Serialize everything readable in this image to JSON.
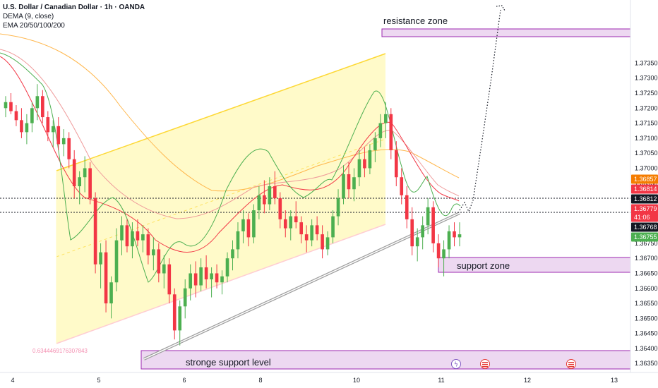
{
  "legend": {
    "title": "U.S. Dollar / Canadian Dollar · 1h · OANDA",
    "ind1": "DEMA (9, close)",
    "ind2": "EMA 20/50/100/200"
  },
  "chart_data": {
    "type": "candlestick",
    "ylim": [
      1.3632,
      1.3756
    ],
    "y_ticks": [
      "1.37350",
      "1.37300",
      "1.37250",
      "1.37200",
      "1.37150",
      "1.37100",
      "1.37050",
      "1.37000",
      "1.36950",
      "1.36900",
      "1.36850",
      "1.36800",
      "1.36750",
      "1.36700",
      "1.36650",
      "1.36600",
      "1.36550",
      "1.36500",
      "1.36450",
      "1.36400",
      "1.36350"
    ],
    "x_ticks": [
      "4",
      "5",
      "6",
      "8",
      "10",
      "11",
      "12",
      "13"
    ],
    "zones": {
      "resistance": {
        "label": "resistance zone",
        "y_top": 1.37297,
        "y_bottom": 1.37276
      },
      "support": {
        "label": "support zone",
        "y_top": 1.3664,
        "y_bottom": 1.36597
      },
      "stronge_support": {
        "label": "stronge support level",
        "y_top": 1.36375,
        "y_bottom": 1.36322
      }
    },
    "channel_label": "0.6344469176307843",
    "price_tags": [
      {
        "value": "1.36857",
        "color": "#f57c00"
      },
      {
        "value": "1.36814",
        "color": "#f23645"
      },
      {
        "value": "1.36812",
        "color": "#131722"
      },
      {
        "value": "1.36779",
        "color": "#f23645"
      },
      {
        "value": "41:06",
        "color": "#f23645"
      },
      {
        "value": "1.36768",
        "color": "#131722"
      },
      {
        "value": "1.36755",
        "color": "#4caf50"
      }
    ],
    "candles": [
      [
        1.372,
        1.3724,
        1.3717,
        1.3722
      ],
      [
        1.3722,
        1.3725,
        1.3718,
        1.3719
      ],
      [
        1.3719,
        1.3721,
        1.3714,
        1.3716
      ],
      [
        1.3716,
        1.372,
        1.371,
        1.3712
      ],
      [
        1.3712,
        1.3718,
        1.3708,
        1.3715
      ],
      [
        1.3715,
        1.3722,
        1.3712,
        1.372
      ],
      [
        1.372,
        1.3728,
        1.3716,
        1.3724
      ],
      [
        1.3724,
        1.3726,
        1.3715,
        1.3717
      ],
      [
        1.3717,
        1.3719,
        1.3709,
        1.3712
      ],
      [
        1.3712,
        1.3716,
        1.3707,
        1.3714
      ],
      [
        1.3714,
        1.3717,
        1.3706,
        1.3708
      ],
      [
        1.3708,
        1.3713,
        1.3704,
        1.371
      ],
      [
        1.371,
        1.3712,
        1.37,
        1.3703
      ],
      [
        1.3703,
        1.3706,
        1.369,
        1.3694
      ],
      [
        1.3694,
        1.3699,
        1.3688,
        1.3697
      ],
      [
        1.3697,
        1.3704,
        1.3692,
        1.37
      ],
      [
        1.37,
        1.3702,
        1.3688,
        1.369
      ],
      [
        1.369,
        1.3692,
        1.3665,
        1.3668
      ],
      [
        1.3668,
        1.3675,
        1.366,
        1.3672
      ],
      [
        1.3672,
        1.3676,
        1.3652,
        1.3655
      ],
      [
        1.3655,
        1.3664,
        1.365,
        1.3662
      ],
      [
        1.3662,
        1.368,
        1.3659,
        1.3676
      ],
      [
        1.3676,
        1.3684,
        1.3671,
        1.3681
      ],
      [
        1.3681,
        1.3683,
        1.3672,
        1.3674
      ],
      [
        1.3674,
        1.3682,
        1.367,
        1.3679
      ],
      [
        1.3679,
        1.3683,
        1.3674,
        1.3676
      ],
      [
        1.3676,
        1.3681,
        1.3672,
        1.3678
      ],
      [
        1.3678,
        1.368,
        1.3668,
        1.3671
      ],
      [
        1.3671,
        1.3677,
        1.3666,
        1.3673
      ],
      [
        1.3673,
        1.3675,
        1.3662,
        1.3665
      ],
      [
        1.3665,
        1.3671,
        1.366,
        1.3668
      ],
      [
        1.3668,
        1.367,
        1.3655,
        1.3658
      ],
      [
        1.3658,
        1.366,
        1.3643,
        1.3646
      ],
      [
        1.3646,
        1.3656,
        1.3641,
        1.3654
      ],
      [
        1.3654,
        1.3663,
        1.365,
        1.366
      ],
      [
        1.366,
        1.3668,
        1.3656,
        1.3665
      ],
      [
        1.3665,
        1.3669,
        1.3657,
        1.3661
      ],
      [
        1.3661,
        1.367,
        1.3659,
        1.3667
      ],
      [
        1.3667,
        1.3671,
        1.366,
        1.3663
      ],
      [
        1.3663,
        1.3667,
        1.3657,
        1.3665
      ],
      [
        1.3665,
        1.3668,
        1.366,
        1.3662
      ],
      [
        1.3662,
        1.3666,
        1.3658,
        1.3664
      ],
      [
        1.3664,
        1.3672,
        1.3662,
        1.367
      ],
      [
        1.367,
        1.3676,
        1.3666,
        1.3673
      ],
      [
        1.3673,
        1.3682,
        1.367,
        1.3679
      ],
      [
        1.3679,
        1.3686,
        1.3675,
        1.3683
      ],
      [
        1.3683,
        1.3685,
        1.3674,
        1.3677
      ],
      [
        1.3677,
        1.3688,
        1.3675,
        1.3686
      ],
      [
        1.3686,
        1.3694,
        1.3683,
        1.3691
      ],
      [
        1.3691,
        1.3696,
        1.3685,
        1.3688
      ],
      [
        1.3688,
        1.3697,
        1.3686,
        1.3694
      ],
      [
        1.3694,
        1.3699,
        1.3688,
        1.369
      ],
      [
        1.369,
        1.3692,
        1.368,
        1.3683
      ],
      [
        1.3683,
        1.3686,
        1.3677,
        1.368
      ],
      [
        1.368,
        1.3686,
        1.3676,
        1.3684
      ],
      [
        1.3684,
        1.3689,
        1.368,
        1.3682
      ],
      [
        1.3682,
        1.3684,
        1.3675,
        1.3678
      ],
      [
        1.3678,
        1.3681,
        1.3672,
        1.3676
      ],
      [
        1.3676,
        1.3683,
        1.3674,
        1.3681
      ],
      [
        1.3681,
        1.3684,
        1.3676,
        1.3678
      ],
      [
        1.3678,
        1.3681,
        1.367,
        1.3673
      ],
      [
        1.3673,
        1.3679,
        1.3671,
        1.3677
      ],
      [
        1.3677,
        1.3686,
        1.3675,
        1.3684
      ],
      [
        1.3684,
        1.3693,
        1.3681,
        1.369
      ],
      [
        1.369,
        1.3701,
        1.3688,
        1.3698
      ],
      [
        1.3698,
        1.3702,
        1.369,
        1.3693
      ],
      [
        1.3693,
        1.37,
        1.3689,
        1.3697
      ],
      [
        1.3697,
        1.3706,
        1.3694,
        1.3703
      ],
      [
        1.3703,
        1.3707,
        1.3697,
        1.37
      ],
      [
        1.37,
        1.3708,
        1.3698,
        1.3706
      ],
      [
        1.3706,
        1.3712,
        1.3702,
        1.371
      ],
      [
        1.371,
        1.3718,
        1.3707,
        1.3715
      ],
      [
        1.3715,
        1.3722,
        1.371,
        1.3718
      ],
      [
        1.3718,
        1.372,
        1.3703,
        1.3706
      ],
      [
        1.3706,
        1.3709,
        1.3694,
        1.3697
      ],
      [
        1.3697,
        1.37,
        1.3688,
        1.3691
      ],
      [
        1.3691,
        1.3694,
        1.368,
        1.3683
      ],
      [
        1.3683,
        1.3687,
        1.3671,
        1.3674
      ],
      [
        1.3674,
        1.368,
        1.3669,
        1.3677
      ],
      [
        1.3677,
        1.3684,
        1.3673,
        1.3681
      ],
      [
        1.3681,
        1.369,
        1.3678,
        1.3687
      ],
      [
        1.3687,
        1.3689,
        1.3672,
        1.3675
      ],
      [
        1.3675,
        1.3678,
        1.3667,
        1.367
      ],
      [
        1.367,
        1.3676,
        1.3664,
        1.3673
      ],
      [
        1.3673,
        1.3681,
        1.367,
        1.3679
      ],
      [
        1.3679,
        1.3682,
        1.3674,
        1.3677
      ],
      [
        1.3677,
        1.3682,
        1.3674,
        1.3678
      ]
    ]
  }
}
